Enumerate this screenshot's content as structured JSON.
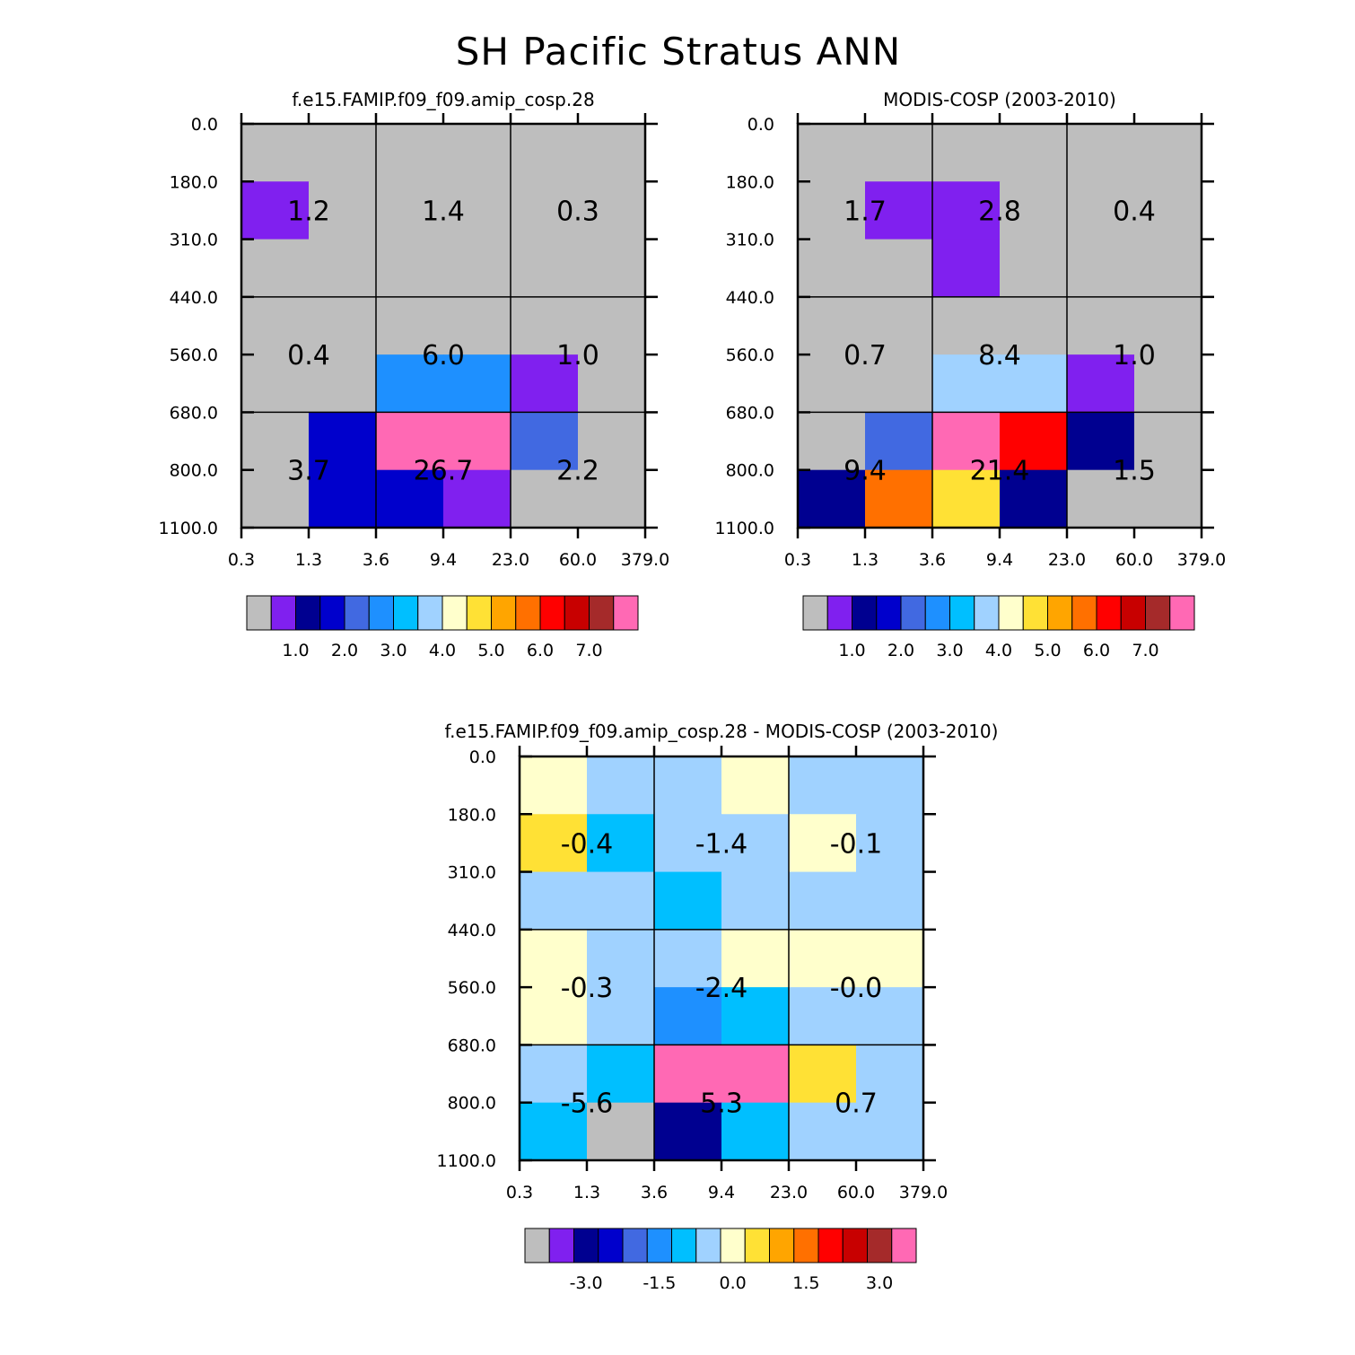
{
  "title": "SH Pacific Stratus ANN",
  "colors": {
    "palette": [
      "#bebebe",
      "#8020ef",
      "#000090",
      "#0000cc",
      "#4169e1",
      "#1e90ff",
      "#00bfff",
      "#a0d2ff",
      "#ffffcc",
      "#ffe135",
      "#ffa500",
      "#ff7000",
      "#ff0000",
      "#c80000",
      "#a52a2a",
      "#ff69b4"
    ],
    "grid": "#000000"
  },
  "chart_data": [
    {
      "type": "heatmap",
      "name": "model",
      "title": "f.e15.FAMIP.f09_f09.amip_cosp.28",
      "xlabel": "",
      "ylabel": "",
      "x_tick_labels": [
        "0.3",
        "1.3",
        "3.6",
        "9.4",
        "23.0",
        "60.0",
        "379.0"
      ],
      "y_tick_labels": [
        "0.0",
        "180.0",
        "310.0",
        "440.0",
        "560.0",
        "680.0",
        "800.0",
        "1100.0"
      ],
      "cells": [
        [
          0,
          0,
          0,
          0,
          0,
          0
        ],
        [
          1,
          0,
          0,
          0,
          0,
          0
        ],
        [
          0,
          0,
          0,
          0,
          0,
          0
        ],
        [
          0,
          0,
          0,
          0,
          0,
          0
        ],
        [
          0,
          0,
          5,
          5,
          1,
          0
        ],
        [
          0,
          3,
          15,
          15,
          4,
          0
        ],
        [
          0,
          3,
          3,
          1,
          0,
          0
        ]
      ],
      "group_labels": [
        [
          "1.2",
          "1.4",
          "0.3"
        ],
        [
          "0.4",
          "6.0",
          "1.0"
        ],
        [
          "3.7",
          "26.7",
          "2.2"
        ]
      ],
      "colorbar": {
        "labels": [
          "1.0",
          "2.0",
          "3.0",
          "4.0",
          "5.0",
          "6.0",
          "7.0"
        ]
      }
    },
    {
      "type": "heatmap",
      "name": "obs",
      "title": "MODIS-COSP (2003-2010)",
      "xlabel": "",
      "ylabel": "",
      "x_tick_labels": [
        "0.3",
        "1.3",
        "3.6",
        "9.4",
        "23.0",
        "60.0",
        "379.0"
      ],
      "y_tick_labels": [
        "0.0",
        "180.0",
        "310.0",
        "440.0",
        "560.0",
        "680.0",
        "800.0",
        "1100.0"
      ],
      "cells": [
        [
          0,
          0,
          0,
          0,
          0,
          0
        ],
        [
          0,
          1,
          1,
          0,
          0,
          0
        ],
        [
          0,
          0,
          1,
          0,
          0,
          0
        ],
        [
          0,
          0,
          0,
          0,
          0,
          0
        ],
        [
          0,
          0,
          7,
          7,
          1,
          0
        ],
        [
          0,
          4,
          15,
          12,
          2,
          0
        ],
        [
          2,
          11,
          9,
          2,
          0,
          0
        ]
      ],
      "group_labels": [
        [
          "1.7",
          "2.8",
          "0.4"
        ],
        [
          "0.7",
          "8.4",
          "1.0"
        ],
        [
          "9.4",
          "21.4",
          "1.5"
        ]
      ],
      "colorbar": {
        "labels": [
          "1.0",
          "2.0",
          "3.0",
          "4.0",
          "5.0",
          "6.0",
          "7.0"
        ]
      }
    },
    {
      "type": "heatmap",
      "name": "difference",
      "title": "f.e15.FAMIP.f09_f09.amip_cosp.28 - MODIS-COSP (2003-2010)",
      "xlabel": "",
      "ylabel": "",
      "x_tick_labels": [
        "0.3",
        "1.3",
        "3.6",
        "9.4",
        "23.0",
        "60.0",
        "379.0"
      ],
      "y_tick_labels": [
        "0.0",
        "180.0",
        "310.0",
        "440.0",
        "560.0",
        "680.0",
        "800.0",
        "1100.0"
      ],
      "cells": [
        [
          8,
          7,
          7,
          8,
          7,
          7
        ],
        [
          9,
          6,
          7,
          7,
          8,
          7
        ],
        [
          7,
          7,
          6,
          7,
          7,
          7
        ],
        [
          8,
          7,
          7,
          8,
          8,
          8
        ],
        [
          8,
          7,
          5,
          6,
          7,
          7
        ],
        [
          7,
          6,
          15,
          15,
          9,
          7
        ],
        [
          6,
          0,
          2,
          6,
          7,
          7
        ]
      ],
      "group_labels": [
        [
          "-0.4",
          "-1.4",
          "-0.1"
        ],
        [
          "-0.3",
          "-2.4",
          "-0.0"
        ],
        [
          "-5.6",
          "5.3",
          "0.7"
        ]
      ],
      "colorbar": {
        "labels": [
          "-3.0",
          "-1.5",
          "0.0",
          "1.5",
          "3.0"
        ]
      }
    }
  ]
}
